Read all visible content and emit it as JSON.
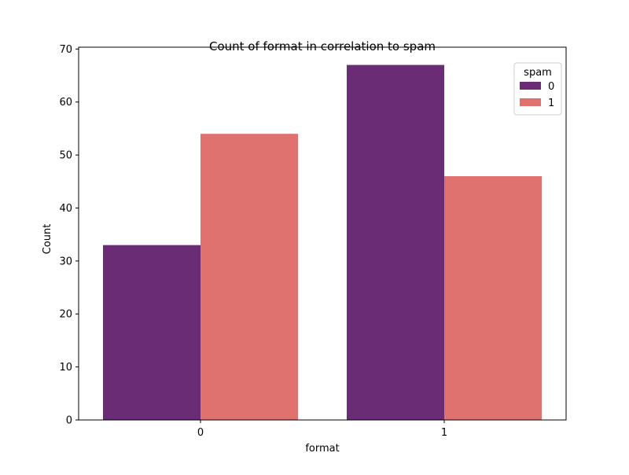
{
  "chart_data": {
    "type": "bar",
    "title": "Count of format in correlation to spam",
    "xlabel": "format",
    "ylabel": "Count",
    "categories": [
      "0",
      "1"
    ],
    "series": [
      {
        "name": "0",
        "values": [
          33,
          67
        ],
        "color": "#6a2c75"
      },
      {
        "name": "1",
        "values": [
          54,
          46
        ],
        "color": "#df716e"
      }
    ],
    "ylim": [
      0,
      70
    ],
    "yticks": [
      0,
      10,
      20,
      30,
      40,
      50,
      60,
      70
    ],
    "legend": {
      "title": "spam",
      "placement": "top-right"
    },
    "grid": false
  }
}
